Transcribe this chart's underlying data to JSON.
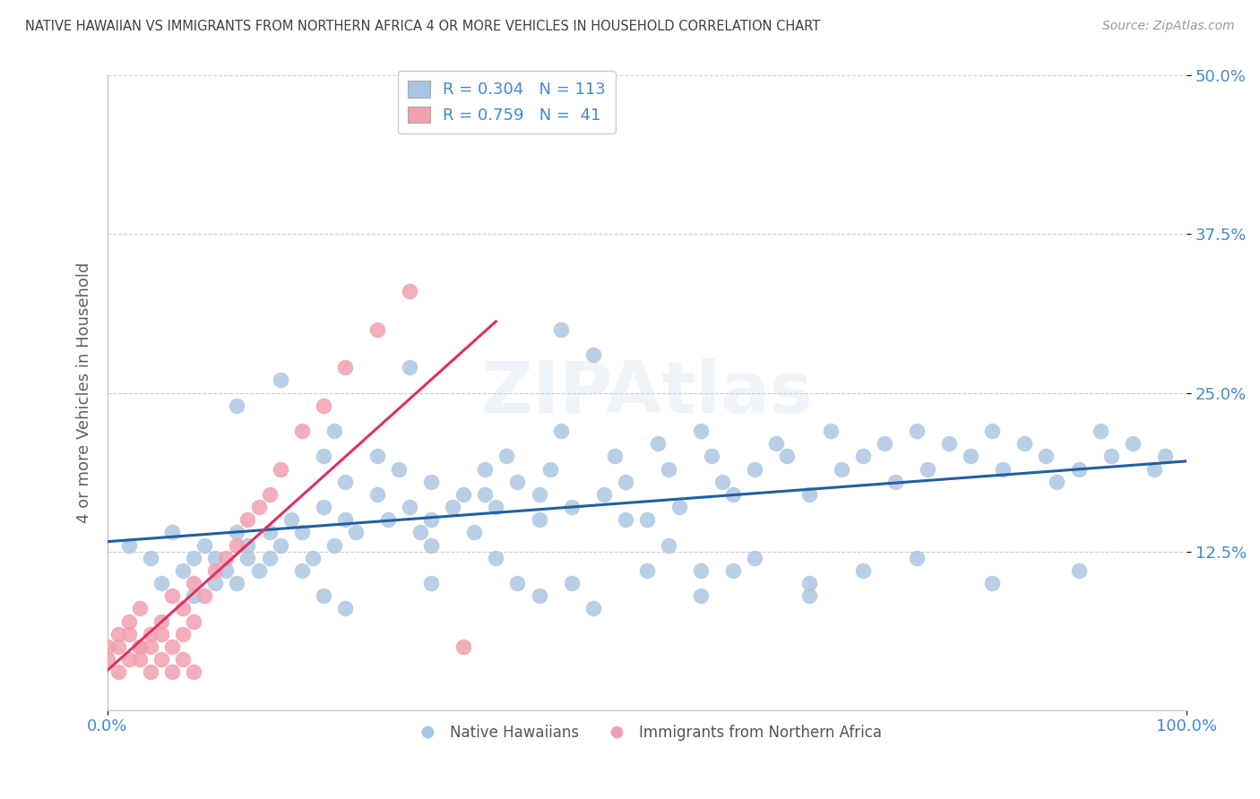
{
  "title": "NATIVE HAWAIIAN VS IMMIGRANTS FROM NORTHERN AFRICA 4 OR MORE VEHICLES IN HOUSEHOLD CORRELATION CHART",
  "source": "Source: ZipAtlas.com",
  "ylabel": "4 or more Vehicles in Household",
  "xlim": [
    0.0,
    1.0
  ],
  "ylim": [
    0.0,
    0.5
  ],
  "xtick_labels": [
    "0.0%",
    "100.0%"
  ],
  "ytick_labels": [
    "12.5%",
    "25.0%",
    "37.5%",
    "50.0%"
  ],
  "ytick_values": [
    0.125,
    0.25,
    0.375,
    0.5
  ],
  "legend_blue_label": "Native Hawaiians",
  "legend_pink_label": "Immigrants from Northern Africa",
  "R_blue": 0.304,
  "N_blue": 113,
  "R_pink": 0.759,
  "N_pink": 41,
  "blue_color": "#a8c4e0",
  "pink_color": "#f0a0b0",
  "blue_line_color": "#2060a0",
  "pink_line_color": "#e03060",
  "title_color": "#404040",
  "axis_label_color": "#606060",
  "tick_color": "#4488cc",
  "blue_x": [
    0.02,
    0.04,
    0.05,
    0.06,
    0.07,
    0.08,
    0.08,
    0.09,
    0.1,
    0.1,
    0.11,
    0.12,
    0.12,
    0.13,
    0.13,
    0.14,
    0.15,
    0.15,
    0.16,
    0.17,
    0.18,
    0.18,
    0.19,
    0.2,
    0.2,
    0.21,
    0.22,
    0.22,
    0.23,
    0.25,
    0.25,
    0.26,
    0.27,
    0.28,
    0.29,
    0.3,
    0.3,
    0.32,
    0.33,
    0.34,
    0.35,
    0.36,
    0.37,
    0.38,
    0.4,
    0.4,
    0.41,
    0.42,
    0.43,
    0.45,
    0.46,
    0.47,
    0.48,
    0.5,
    0.51,
    0.52,
    0.53,
    0.55,
    0.56,
    0.57,
    0.58,
    0.6,
    0.62,
    0.63,
    0.65,
    0.67,
    0.68,
    0.7,
    0.72,
    0.73,
    0.75,
    0.76,
    0.78,
    0.8,
    0.82,
    0.83,
    0.85,
    0.87,
    0.88,
    0.9,
    0.92,
    0.93,
    0.95,
    0.97,
    0.98,
    0.12,
    0.16,
    0.21,
    0.28,
    0.35,
    0.42,
    0.3,
    0.38,
    0.45,
    0.5,
    0.55,
    0.6,
    0.65,
    0.7,
    0.52,
    0.4,
    0.48,
    0.55,
    0.22,
    0.3,
    0.36,
    0.43,
    0.58,
    0.65,
    0.75,
    0.82,
    0.9,
    0.2
  ],
  "blue_y": [
    0.13,
    0.12,
    0.1,
    0.14,
    0.11,
    0.12,
    0.09,
    0.13,
    0.1,
    0.12,
    0.11,
    0.14,
    0.1,
    0.13,
    0.12,
    0.11,
    0.14,
    0.12,
    0.13,
    0.15,
    0.11,
    0.14,
    0.12,
    0.2,
    0.16,
    0.13,
    0.18,
    0.15,
    0.14,
    0.17,
    0.2,
    0.15,
    0.19,
    0.16,
    0.14,
    0.18,
    0.15,
    0.16,
    0.17,
    0.14,
    0.19,
    0.16,
    0.2,
    0.18,
    0.15,
    0.17,
    0.19,
    0.22,
    0.16,
    0.28,
    0.17,
    0.2,
    0.18,
    0.15,
    0.21,
    0.19,
    0.16,
    0.22,
    0.2,
    0.18,
    0.17,
    0.19,
    0.21,
    0.2,
    0.17,
    0.22,
    0.19,
    0.2,
    0.21,
    0.18,
    0.22,
    0.19,
    0.21,
    0.2,
    0.22,
    0.19,
    0.21,
    0.2,
    0.18,
    0.19,
    0.22,
    0.2,
    0.21,
    0.19,
    0.2,
    0.24,
    0.26,
    0.22,
    0.27,
    0.17,
    0.3,
    0.13,
    0.1,
    0.08,
    0.11,
    0.09,
    0.12,
    0.1,
    0.11,
    0.13,
    0.09,
    0.15,
    0.11,
    0.08,
    0.1,
    0.12,
    0.1,
    0.11,
    0.09,
    0.12,
    0.1,
    0.11,
    0.09
  ],
  "pink_x": [
    0.0,
    0.0,
    0.01,
    0.01,
    0.01,
    0.02,
    0.02,
    0.02,
    0.03,
    0.03,
    0.03,
    0.04,
    0.04,
    0.05,
    0.05,
    0.06,
    0.06,
    0.07,
    0.07,
    0.08,
    0.08,
    0.09,
    0.1,
    0.11,
    0.12,
    0.13,
    0.14,
    0.15,
    0.16,
    0.18,
    0.2,
    0.22,
    0.25,
    0.28,
    0.03,
    0.04,
    0.05,
    0.06,
    0.07,
    0.08,
    0.33
  ],
  "pink_y": [
    0.05,
    0.04,
    0.06,
    0.03,
    0.05,
    0.07,
    0.04,
    0.06,
    0.05,
    0.08,
    0.04,
    0.06,
    0.05,
    0.07,
    0.06,
    0.09,
    0.05,
    0.08,
    0.06,
    0.1,
    0.07,
    0.09,
    0.11,
    0.12,
    0.13,
    0.15,
    0.16,
    0.17,
    0.19,
    0.22,
    0.24,
    0.27,
    0.3,
    0.33,
    0.05,
    0.03,
    0.04,
    0.03,
    0.04,
    0.03,
    0.05
  ]
}
